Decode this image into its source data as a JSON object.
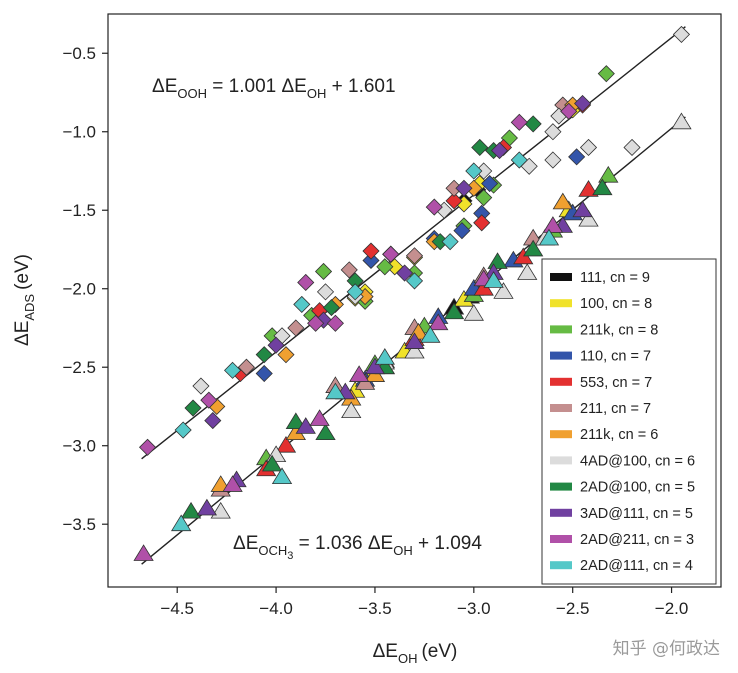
{
  "chart_data": {
    "type": "scatter",
    "xlabel_main": "ΔE",
    "xlabel_sub": "OH",
    "xlabel_unit": "(eV)",
    "ylabel_main": "ΔE",
    "ylabel_sub": "ADS",
    "ylabel_unit": "(eV)",
    "xlim": [
      -4.85,
      -1.75
    ],
    "ylim": [
      -3.9,
      -0.25
    ],
    "xticks": [
      -4.5,
      -4.0,
      -3.5,
      -3.0,
      -2.5,
      -2.0
    ],
    "xtick_labels": [
      "−4.5",
      "−4.0",
      "−3.5",
      "−3.0",
      "−2.5",
      "−2.0"
    ],
    "yticks": [
      -3.5,
      -3.0,
      -2.5,
      -2.0,
      -1.5,
      -1.0,
      -0.5
    ],
    "ytick_labels": [
      "−3.5",
      "−3.0",
      "−2.5",
      "−2.0",
      "−1.5",
      "−1.0",
      "−0.5"
    ],
    "fits": [
      {
        "name": "OOH",
        "slope": 1.001,
        "intercept": 1.601,
        "x_range": [
          -4.68,
          -1.93
        ],
        "eq": {
          "lhs": "ΔE",
          "lhs_sub": "OOH",
          "mid": " = 1.001 ΔE",
          "mid_sub": "OH",
          "rhs": " + 1.601"
        }
      },
      {
        "name": "OCH3",
        "slope": 1.036,
        "intercept": 1.094,
        "x_range": [
          -4.68,
          -1.93
        ],
        "eq": {
          "lhs": "ΔE",
          "lhs_sub": "OCH",
          "lhs_sub2": "3",
          "mid": " = 1.036 ΔE",
          "mid_sub": "OH",
          "rhs": " + 1.094"
        }
      }
    ],
    "legend_position": "right",
    "series": [
      {
        "name": "111, cn = 9",
        "color": "#111111",
        "ooh": [
          [
            -3.05,
            -1.44
          ],
          [
            -2.98,
            -1.37
          ]
        ],
        "och3": [
          [
            -3.1,
            -2.12
          ],
          [
            -3.02,
            -2.05
          ]
        ]
      },
      {
        "name": "100, cn = 8",
        "color": "#f0e22a",
        "ooh": [
          [
            -3.55,
            -2.02
          ],
          [
            -3.4,
            -1.86
          ],
          [
            -3.05,
            -1.46
          ],
          [
            -2.97,
            -1.33
          ],
          [
            -2.5,
            -0.86
          ],
          [
            -3.6,
            -2.06
          ],
          [
            -3.3,
            -1.8
          ]
        ],
        "och3": [
          [
            -3.6,
            -2.65
          ],
          [
            -3.52,
            -2.55
          ],
          [
            -3.35,
            -2.4
          ],
          [
            -2.52,
            -1.5
          ],
          [
            -3.05,
            -2.07
          ],
          [
            -3.45,
            -2.5
          ]
        ]
      },
      {
        "name": "211k, cn = 8",
        "color": "#66bb44",
        "ooh": [
          [
            -4.02,
            -2.3
          ],
          [
            -3.76,
            -1.89
          ],
          [
            -3.45,
            -1.86
          ],
          [
            -3.3,
            -1.9
          ],
          [
            -3.05,
            -1.6
          ],
          [
            -2.9,
            -1.34
          ],
          [
            -2.82,
            -1.04
          ],
          [
            -2.33,
            -0.63
          ],
          [
            -3.82,
            -2.17
          ],
          [
            -3.55,
            -2.08
          ],
          [
            -2.95,
            -1.42
          ]
        ],
        "och3": [
          [
            -4.05,
            -3.08
          ],
          [
            -3.25,
            -2.24
          ],
          [
            -3.0,
            -2.04
          ],
          [
            -2.6,
            -1.63
          ],
          [
            -2.32,
            -1.28
          ],
          [
            -3.5,
            -2.48
          ]
        ]
      },
      {
        "name": "110, cn = 7",
        "color": "#3355aa",
        "ooh": [
          [
            -4.06,
            -2.54
          ],
          [
            -3.52,
            -1.82
          ],
          [
            -3.06,
            -1.63
          ],
          [
            -2.96,
            -1.52
          ],
          [
            -2.92,
            -1.33
          ],
          [
            -2.48,
            -1.16
          ],
          [
            -3.2,
            -1.68
          ]
        ],
        "och3": [
          [
            -3.55,
            -2.58
          ],
          [
            -3.0,
            -2.0
          ],
          [
            -2.8,
            -1.82
          ],
          [
            -2.5,
            -1.52
          ],
          [
            -3.18,
            -2.18
          ]
        ]
      },
      {
        "name": "553, cn = 7",
        "color": "#e33030",
        "ooh": [
          [
            -4.18,
            -2.54
          ],
          [
            -3.78,
            -2.14
          ],
          [
            -3.52,
            -1.76
          ],
          [
            -3.1,
            -1.44
          ],
          [
            -2.96,
            -1.58
          ],
          [
            -2.85,
            -1.1
          ],
          [
            -2.45,
            -0.83
          ]
        ],
        "och3": [
          [
            -4.05,
            -3.15
          ],
          [
            -3.95,
            -3.0
          ],
          [
            -3.45,
            -2.46
          ],
          [
            -2.95,
            -2.0
          ],
          [
            -2.75,
            -1.8
          ],
          [
            -2.42,
            -1.37
          ],
          [
            -3.3,
            -2.32
          ]
        ]
      },
      {
        "name": "211, cn = 7",
        "color": "#c48f8f",
        "ooh": [
          [
            -4.15,
            -2.5
          ],
          [
            -3.63,
            -1.88
          ],
          [
            -3.3,
            -1.79
          ],
          [
            -3.1,
            -1.36
          ],
          [
            -2.55,
            -0.83
          ],
          [
            -3.9,
            -2.25
          ]
        ],
        "och3": [
          [
            -4.28,
            -3.28
          ],
          [
            -3.7,
            -2.62
          ],
          [
            -3.3,
            -2.25
          ],
          [
            -2.95,
            -1.92
          ],
          [
            -2.7,
            -1.68
          ],
          [
            -3.55,
            -2.6
          ]
        ]
      },
      {
        "name": "211k, cn = 6",
        "color": "#f0a030",
        "ooh": [
          [
            -4.3,
            -2.75
          ],
          [
            -3.95,
            -2.42
          ],
          [
            -3.55,
            -2.05
          ],
          [
            -3.2,
            -1.7
          ],
          [
            -3.0,
            -1.36
          ],
          [
            -2.5,
            -0.83
          ],
          [
            -3.7,
            -2.1
          ]
        ],
        "och3": [
          [
            -4.28,
            -3.25
          ],
          [
            -3.9,
            -2.92
          ],
          [
            -3.5,
            -2.55
          ],
          [
            -3.28,
            -2.28
          ],
          [
            -2.55,
            -1.45
          ],
          [
            -3.62,
            -2.7
          ]
        ]
      },
      {
        "name": "4AD@100, cn = 6",
        "color": "#dcdcdc",
        "ooh": [
          [
            -4.38,
            -2.62
          ],
          [
            -3.97,
            -2.3
          ],
          [
            -3.6,
            -2.05
          ],
          [
            -3.15,
            -1.5
          ],
          [
            -2.95,
            -1.25
          ],
          [
            -2.72,
            -1.22
          ],
          [
            -2.6,
            -1.0
          ],
          [
            -2.57,
            -0.9
          ],
          [
            -2.42,
            -1.1
          ],
          [
            -2.2,
            -1.1
          ],
          [
            -1.95,
            -0.38
          ],
          [
            -3.75,
            -2.02
          ],
          [
            -2.6,
            -1.18
          ]
        ],
        "och3": [
          [
            -4.28,
            -3.42
          ],
          [
            -4.0,
            -3.06
          ],
          [
            -3.62,
            -2.78
          ],
          [
            -3.3,
            -2.4
          ],
          [
            -3.0,
            -2.16
          ],
          [
            -2.73,
            -1.9
          ],
          [
            -2.64,
            -1.68
          ],
          [
            -2.42,
            -1.56
          ],
          [
            -1.95,
            -0.94
          ],
          [
            -3.45,
            -2.47
          ],
          [
            -2.85,
            -2.02
          ]
        ]
      },
      {
        "name": "2AD@100, cn = 5",
        "color": "#228844",
        "ooh": [
          [
            -4.42,
            -2.76
          ],
          [
            -4.06,
            -2.42
          ],
          [
            -3.72,
            -2.12
          ],
          [
            -3.42,
            -1.78
          ],
          [
            -3.17,
            -1.7
          ],
          [
            -2.97,
            -1.1
          ],
          [
            -2.7,
            -0.95
          ],
          [
            -3.6,
            -1.95
          ],
          [
            -2.9,
            -1.12
          ]
        ],
        "och3": [
          [
            -4.43,
            -3.42
          ],
          [
            -4.02,
            -3.12
          ],
          [
            -3.75,
            -2.92
          ],
          [
            -3.45,
            -2.5
          ],
          [
            -3.1,
            -2.15
          ],
          [
            -2.88,
            -1.83
          ],
          [
            -2.7,
            -1.75
          ],
          [
            -2.35,
            -1.36
          ],
          [
            -3.9,
            -2.85
          ]
        ]
      },
      {
        "name": "3AD@111, cn = 5",
        "color": "#7040a0",
        "ooh": [
          [
            -4.32,
            -2.84
          ],
          [
            -4.0,
            -2.36
          ],
          [
            -3.76,
            -2.2
          ],
          [
            -3.42,
            -1.78
          ],
          [
            -3.05,
            -1.36
          ],
          [
            -2.87,
            -1.12
          ],
          [
            -2.45,
            -0.82
          ],
          [
            -3.35,
            -1.9
          ]
        ],
        "och3": [
          [
            -4.35,
            -3.4
          ],
          [
            -4.2,
            -3.22
          ],
          [
            -3.85,
            -2.88
          ],
          [
            -3.65,
            -2.66
          ],
          [
            -3.3,
            -2.34
          ],
          [
            -2.9,
            -1.9
          ],
          [
            -2.55,
            -1.6
          ],
          [
            -2.45,
            -1.5
          ],
          [
            -3.5,
            -2.5
          ]
        ]
      },
      {
        "name": "2AD@211, cn = 3",
        "color": "#b050a8",
        "ooh": [
          [
            -4.65,
            -3.01
          ],
          [
            -4.34,
            -2.71
          ],
          [
            -3.8,
            -2.22
          ],
          [
            -3.7,
            -2.22
          ],
          [
            -3.42,
            -1.78
          ],
          [
            -2.77,
            -0.94
          ],
          [
            -2.52,
            -0.87
          ],
          [
            -3.85,
            -1.96
          ],
          [
            -3.2,
            -1.48
          ]
        ],
        "och3": [
          [
            -4.67,
            -3.69
          ],
          [
            -4.22,
            -3.25
          ],
          [
            -3.78,
            -2.83
          ],
          [
            -3.58,
            -2.55
          ],
          [
            -3.18,
            -2.22
          ],
          [
            -2.95,
            -1.94
          ],
          [
            -2.6,
            -1.6
          ]
        ]
      },
      {
        "name": "2AD@111, cn = 4",
        "color": "#55c8c8",
        "ooh": [
          [
            -4.47,
            -2.9
          ],
          [
            -4.22,
            -2.52
          ],
          [
            -3.87,
            -2.1
          ],
          [
            -3.3,
            -1.95
          ],
          [
            -3.12,
            -1.7
          ],
          [
            -3.0,
            -1.25
          ],
          [
            -2.77,
            -1.18
          ],
          [
            -3.6,
            -2.02
          ]
        ],
        "och3": [
          [
            -4.48,
            -3.5
          ],
          [
            -3.97,
            -3.2
          ],
          [
            -3.7,
            -2.66
          ],
          [
            -3.45,
            -2.44
          ],
          [
            -3.22,
            -2.3
          ],
          [
            -2.9,
            -1.95
          ],
          [
            -2.62,
            -1.68
          ]
        ]
      }
    ]
  },
  "watermark": "知乎 @何政达"
}
